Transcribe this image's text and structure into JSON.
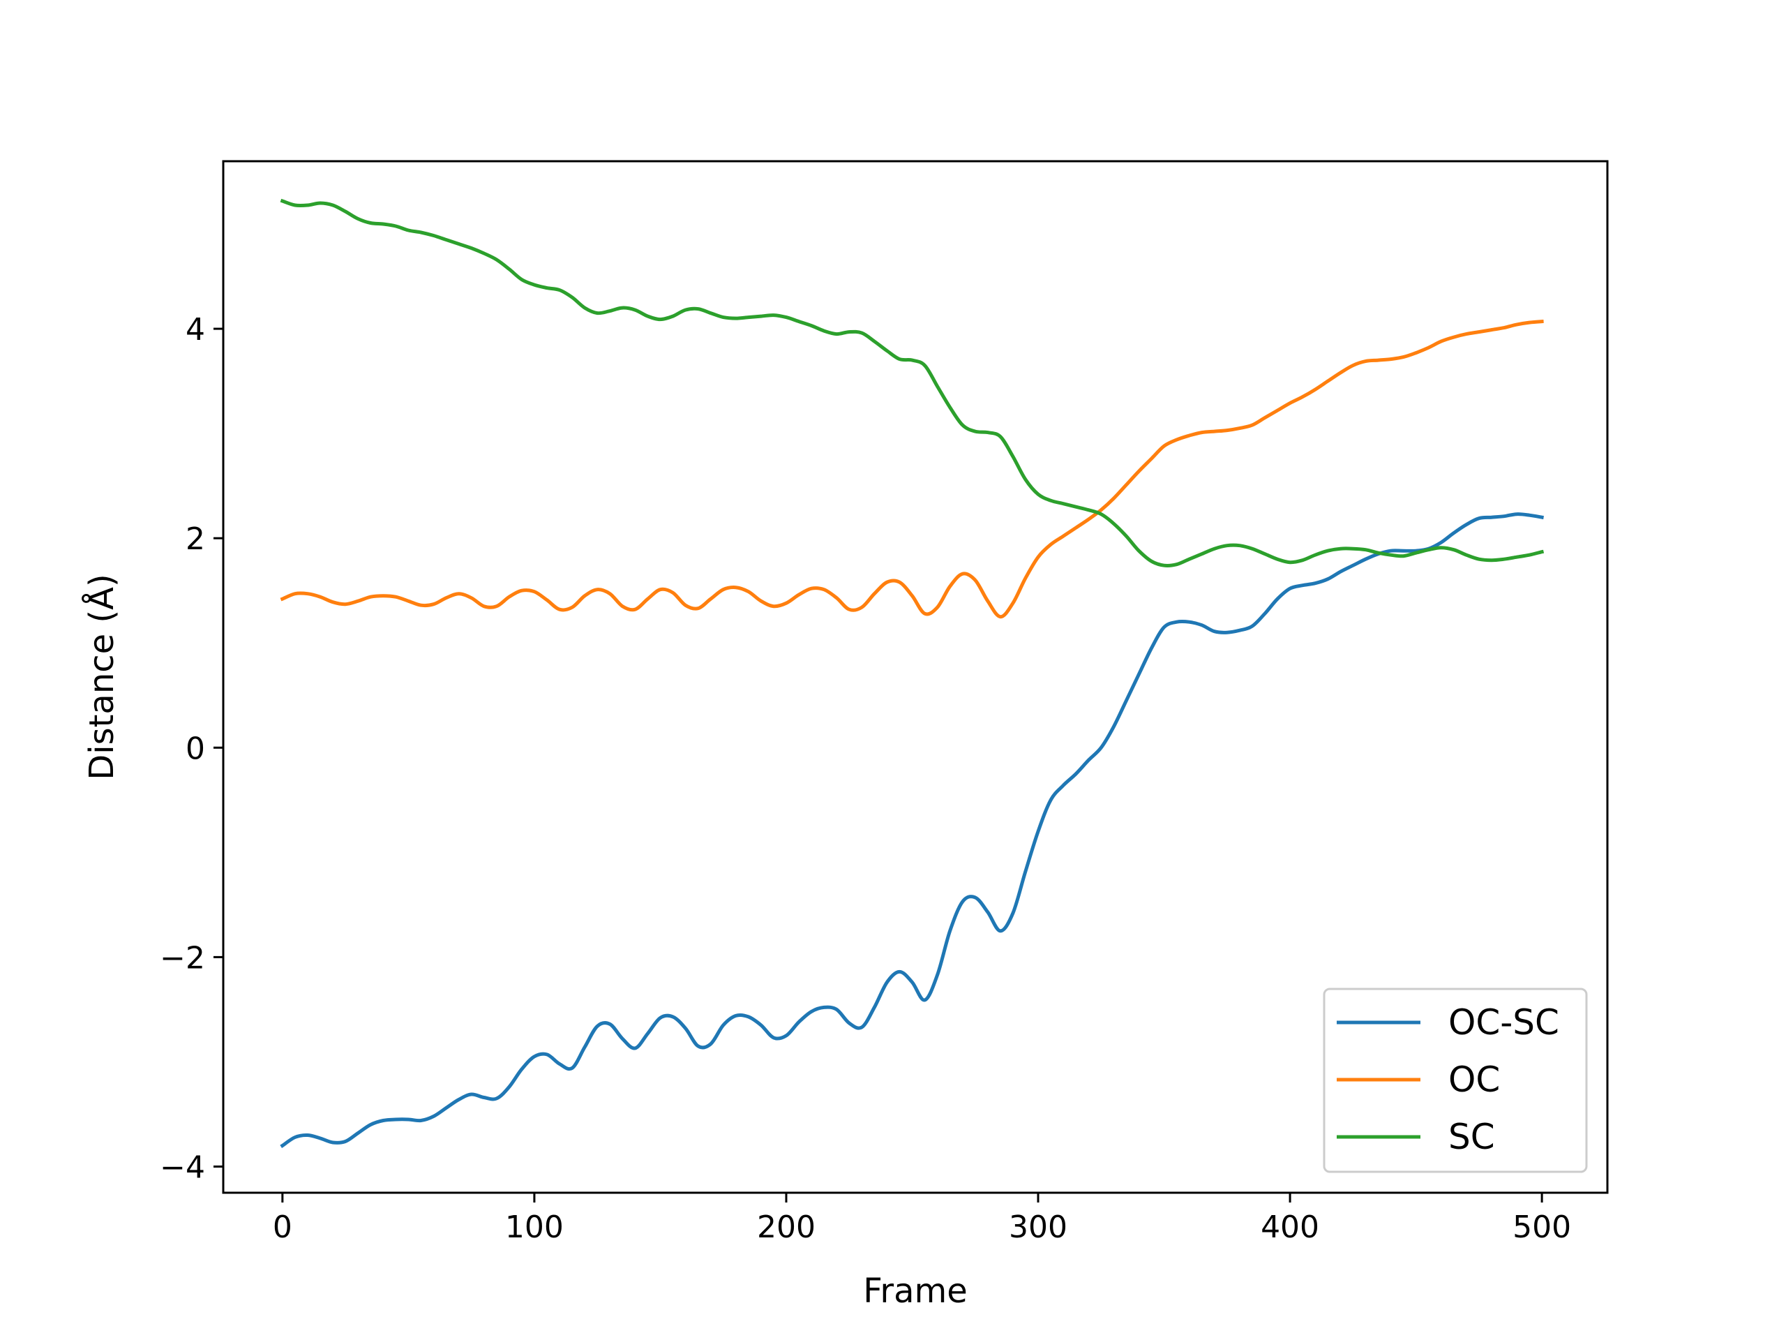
{
  "chart_data": {
    "type": "line",
    "title": "",
    "xlabel": "Frame",
    "ylabel": "Distance (Å)",
    "xlim": [
      -23.5,
      526
    ],
    "ylim": [
      -4.25,
      5.6
    ],
    "xticks": [
      0,
      100,
      200,
      300,
      400,
      500
    ],
    "yticks": [
      -4,
      -2,
      0,
      2,
      4
    ],
    "xtick_labels": [
      "0",
      "100",
      "200",
      "300",
      "400",
      "500"
    ],
    "ytick_labels": [
      "−4",
      "−2",
      "0",
      "2",
      "4"
    ],
    "grid": false,
    "legend_position": "lower-right",
    "series": [
      {
        "name": "OC-SC",
        "color": "#1f77b4",
        "x": [
          0,
          5,
          10,
          15,
          20,
          25,
          30,
          35,
          40,
          45,
          50,
          55,
          60,
          65,
          70,
          75,
          80,
          85,
          90,
          95,
          100,
          105,
          110,
          115,
          120,
          125,
          130,
          135,
          140,
          145,
          150,
          155,
          160,
          165,
          170,
          175,
          180,
          185,
          190,
          195,
          200,
          205,
          210,
          215,
          220,
          225,
          230,
          235,
          240,
          245,
          250,
          255,
          260,
          265,
          270,
          275,
          280,
          285,
          290,
          295,
          300,
          305,
          310,
          315,
          320,
          325,
          330,
          335,
          340,
          345,
          350,
          355,
          360,
          365,
          370,
          375,
          380,
          385,
          390,
          395,
          400,
          405,
          410,
          415,
          420,
          425,
          430,
          435,
          440,
          445,
          450,
          455,
          460,
          465,
          470,
          475,
          480,
          485,
          490,
          495,
          500
        ],
        "y": [
          -3.8,
          -3.72,
          -3.7,
          -3.73,
          -3.77,
          -3.76,
          -3.68,
          -3.6,
          -3.56,
          -3.55,
          -3.55,
          -3.56,
          -3.52,
          -3.44,
          -3.36,
          -3.31,
          -3.34,
          -3.35,
          -3.24,
          -3.07,
          -2.95,
          -2.93,
          -3.02,
          -3.06,
          -2.86,
          -2.66,
          -2.64,
          -2.78,
          -2.87,
          -2.73,
          -2.58,
          -2.57,
          -2.68,
          -2.85,
          -2.83,
          -2.65,
          -2.56,
          -2.57,
          -2.65,
          -2.77,
          -2.75,
          -2.62,
          -2.52,
          -2.48,
          -2.5,
          -2.63,
          -2.67,
          -2.48,
          -2.24,
          -2.14,
          -2.24,
          -2.41,
          -2.17,
          -1.75,
          -1.47,
          -1.43,
          -1.57,
          -1.75,
          -1.58,
          -1.18,
          -0.8,
          -0.5,
          -0.36,
          -0.25,
          -0.12,
          0.0,
          0.2,
          0.45,
          0.7,
          0.95,
          1.15,
          1.2,
          1.2,
          1.17,
          1.11,
          1.1,
          1.12,
          1.16,
          1.28,
          1.42,
          1.52,
          1.55,
          1.57,
          1.61,
          1.68,
          1.74,
          1.8,
          1.85,
          1.88,
          1.88,
          1.88,
          1.9,
          1.96,
          2.05,
          2.13,
          2.19,
          2.2,
          2.21,
          2.23,
          2.22,
          2.2
        ]
      },
      {
        "name": "OC",
        "color": "#ff7f0e",
        "x": [
          0,
          5,
          10,
          15,
          20,
          25,
          30,
          35,
          40,
          45,
          50,
          55,
          60,
          65,
          70,
          75,
          80,
          85,
          90,
          95,
          100,
          105,
          110,
          115,
          120,
          125,
          130,
          135,
          140,
          145,
          150,
          155,
          160,
          165,
          170,
          175,
          180,
          185,
          190,
          195,
          200,
          205,
          210,
          215,
          220,
          225,
          230,
          235,
          240,
          245,
          250,
          255,
          260,
          265,
          270,
          275,
          280,
          285,
          290,
          295,
          300,
          305,
          310,
          315,
          320,
          325,
          330,
          335,
          340,
          345,
          350,
          355,
          360,
          365,
          370,
          375,
          380,
          385,
          390,
          395,
          400,
          405,
          410,
          415,
          420,
          425,
          430,
          435,
          440,
          445,
          450,
          455,
          460,
          465,
          470,
          475,
          480,
          485,
          490,
          495,
          500
        ],
        "y": [
          1.42,
          1.47,
          1.47,
          1.44,
          1.39,
          1.37,
          1.4,
          1.44,
          1.45,
          1.44,
          1.4,
          1.36,
          1.37,
          1.43,
          1.47,
          1.43,
          1.35,
          1.35,
          1.44,
          1.5,
          1.49,
          1.41,
          1.32,
          1.34,
          1.45,
          1.51,
          1.47,
          1.35,
          1.32,
          1.42,
          1.51,
          1.48,
          1.36,
          1.33,
          1.42,
          1.51,
          1.53,
          1.49,
          1.4,
          1.35,
          1.38,
          1.46,
          1.52,
          1.51,
          1.43,
          1.32,
          1.34,
          1.47,
          1.58,
          1.58,
          1.45,
          1.28,
          1.34,
          1.54,
          1.66,
          1.6,
          1.4,
          1.25,
          1.38,
          1.62,
          1.82,
          1.94,
          2.02,
          2.1,
          2.18,
          2.27,
          2.38,
          2.51,
          2.64,
          2.76,
          2.88,
          2.94,
          2.98,
          3.01,
          3.02,
          3.03,
          3.05,
          3.08,
          3.15,
          3.22,
          3.29,
          3.35,
          3.42,
          3.5,
          3.58,
          3.65,
          3.69,
          3.7,
          3.71,
          3.73,
          3.77,
          3.82,
          3.88,
          3.92,
          3.95,
          3.97,
          3.99,
          4.01,
          4.04,
          4.06,
          4.07
        ]
      },
      {
        "name": "SC",
        "color": "#2ca02c",
        "x": [
          0,
          5,
          10,
          15,
          20,
          25,
          30,
          35,
          40,
          45,
          50,
          55,
          60,
          65,
          70,
          75,
          80,
          85,
          90,
          95,
          100,
          105,
          110,
          115,
          120,
          125,
          130,
          135,
          140,
          145,
          150,
          155,
          160,
          165,
          170,
          175,
          180,
          185,
          190,
          195,
          200,
          205,
          210,
          215,
          220,
          225,
          230,
          235,
          240,
          245,
          250,
          255,
          260,
          265,
          270,
          275,
          280,
          285,
          290,
          295,
          300,
          305,
          310,
          315,
          320,
          325,
          330,
          335,
          340,
          345,
          350,
          355,
          360,
          365,
          370,
          375,
          380,
          385,
          390,
          395,
          400,
          405,
          410,
          415,
          420,
          425,
          430,
          435,
          440,
          445,
          450,
          455,
          460,
          465,
          470,
          475,
          480,
          485,
          490,
          495,
          500
        ],
        "y": [
          5.22,
          5.18,
          5.18,
          5.2,
          5.18,
          5.12,
          5.05,
          5.01,
          5.0,
          4.98,
          4.94,
          4.92,
          4.89,
          4.85,
          4.81,
          4.77,
          4.72,
          4.66,
          4.57,
          4.47,
          4.42,
          4.39,
          4.37,
          4.3,
          4.2,
          4.15,
          4.17,
          4.2,
          4.18,
          4.12,
          4.09,
          4.12,
          4.18,
          4.19,
          4.15,
          4.11,
          4.1,
          4.11,
          4.12,
          4.13,
          4.11,
          4.07,
          4.03,
          3.98,
          3.95,
          3.97,
          3.96,
          3.88,
          3.79,
          3.71,
          3.7,
          3.65,
          3.45,
          3.25,
          3.08,
          3.02,
          3.01,
          2.97,
          2.78,
          2.56,
          2.42,
          2.36,
          2.33,
          2.3,
          2.27,
          2.23,
          2.14,
          2.02,
          1.88,
          1.78,
          1.74,
          1.75,
          1.8,
          1.85,
          1.9,
          1.93,
          1.93,
          1.9,
          1.85,
          1.8,
          1.77,
          1.79,
          1.84,
          1.88,
          1.9,
          1.9,
          1.89,
          1.86,
          1.84,
          1.83,
          1.86,
          1.89,
          1.91,
          1.89,
          1.84,
          1.8,
          1.79,
          1.8,
          1.82,
          1.84,
          1.87
        ]
      }
    ]
  }
}
